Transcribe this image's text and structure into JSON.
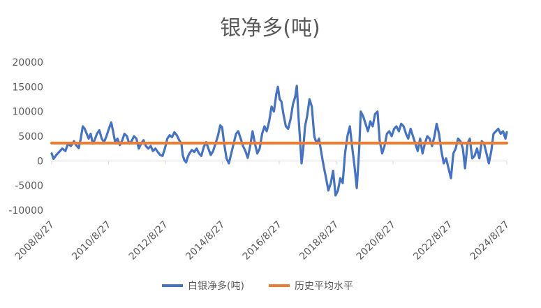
{
  "chart_data": {
    "type": "line",
    "title": "银净多(吨)",
    "xlabel": "",
    "ylabel": "",
    "ylim": [
      -10000,
      20000
    ],
    "y_ticks": [
      20000,
      15000,
      10000,
      5000,
      0,
      -5000,
      -10000
    ],
    "x_ticks": [
      "2008/8/27",
      "2010/8/27",
      "2012/8/27",
      "2014/8/27",
      "2016/8/27",
      "2018/8/27",
      "2020/8/27",
      "2022/8/27",
      "2024/8/27"
    ],
    "xlim": [
      "2008-08-27",
      "2024-08-27"
    ],
    "grid": false,
    "legend_position": "bottom",
    "series": [
      {
        "name": "白银净多(吨)",
        "color": "#4472C4",
        "points": [
          [
            "2008-08-27",
            1500
          ],
          [
            "2008-09-20",
            400
          ],
          [
            "2008-10-25",
            1200
          ],
          [
            "2008-12-01",
            1800
          ],
          [
            "2009-01-10",
            2500
          ],
          [
            "2009-02-20",
            2000
          ],
          [
            "2009-03-25",
            3500
          ],
          [
            "2009-05-01",
            3000
          ],
          [
            "2009-06-10",
            4000
          ],
          [
            "2009-07-05",
            3200
          ],
          [
            "2009-08-10",
            2600
          ],
          [
            "2009-09-05",
            4500
          ],
          [
            "2009-10-01",
            7000
          ],
          [
            "2009-10-25",
            6500
          ],
          [
            "2009-11-20",
            5500
          ],
          [
            "2009-12-15",
            4500
          ],
          [
            "2010-01-10",
            5500
          ],
          [
            "2010-02-05",
            3500
          ],
          [
            "2010-03-01",
            4200
          ],
          [
            "2010-04-01",
            5500
          ],
          [
            "2010-05-01",
            6200
          ],
          [
            "2010-06-01",
            4500
          ],
          [
            "2010-07-01",
            3800
          ],
          [
            "2010-08-01",
            5000
          ],
          [
            "2010-09-01",
            6500
          ],
          [
            "2010-10-01",
            7800
          ],
          [
            "2010-10-25",
            6000
          ],
          [
            "2010-11-20",
            3800
          ],
          [
            "2010-12-20",
            4500
          ],
          [
            "2011-01-20",
            3200
          ],
          [
            "2011-02-20",
            4200
          ],
          [
            "2011-03-20",
            5500
          ],
          [
            "2011-04-20",
            5000
          ],
          [
            "2011-05-20",
            3500
          ],
          [
            "2011-06-20",
            4000
          ],
          [
            "2011-07-20",
            5000
          ],
          [
            "2011-08-20",
            4500
          ],
          [
            "2011-09-20",
            2500
          ],
          [
            "2011-10-20",
            3500
          ],
          [
            "2011-11-20",
            4200
          ],
          [
            "2011-12-20",
            3000
          ],
          [
            "2012-01-20",
            2500
          ],
          [
            "2012-02-20",
            3000
          ],
          [
            "2012-03-20",
            2000
          ],
          [
            "2012-04-20",
            2500
          ],
          [
            "2012-05-20",
            1800
          ],
          [
            "2012-06-20",
            1200
          ],
          [
            "2012-07-20",
            1000
          ],
          [
            "2012-08-20",
            2500
          ],
          [
            "2012-09-20",
            4500
          ],
          [
            "2012-10-20",
            5200
          ],
          [
            "2012-11-20",
            4800
          ],
          [
            "2012-12-20",
            5800
          ],
          [
            "2013-01-20",
            5200
          ],
          [
            "2013-02-20",
            4200
          ],
          [
            "2013-03-20",
            3500
          ],
          [
            "2013-04-05",
            1200
          ],
          [
            "2013-04-25",
            200
          ],
          [
            "2013-05-20",
            -300
          ],
          [
            "2013-06-10",
            800
          ],
          [
            "2013-07-01",
            1500
          ],
          [
            "2013-08-01",
            2200
          ],
          [
            "2013-09-01",
            1800
          ],
          [
            "2013-10-01",
            2500
          ],
          [
            "2013-11-01",
            1500
          ],
          [
            "2013-12-01",
            1000
          ],
          [
            "2014-01-01",
            2800
          ],
          [
            "2014-02-01",
            3800
          ],
          [
            "2014-03-01",
            2500
          ],
          [
            "2014-04-01",
            1200
          ],
          [
            "2014-05-01",
            2000
          ],
          [
            "2014-06-01",
            3500
          ],
          [
            "2014-07-01",
            5000
          ],
          [
            "2014-08-01",
            7200
          ],
          [
            "2014-08-25",
            6800
          ],
          [
            "2014-09-20",
            3500
          ],
          [
            "2014-10-20",
            500
          ],
          [
            "2014-11-20",
            -500
          ],
          [
            "2014-12-20",
            1500
          ],
          [
            "2015-01-20",
            3500
          ],
          [
            "2015-02-20",
            5500
          ],
          [
            "2015-03-20",
            6000
          ],
          [
            "2015-04-20",
            4500
          ],
          [
            "2015-05-20",
            3000
          ],
          [
            "2015-06-20",
            2000
          ],
          [
            "2015-07-20",
            600
          ],
          [
            "2015-08-20",
            3000
          ],
          [
            "2015-09-20",
            6000
          ],
          [
            "2015-10-20",
            3500
          ],
          [
            "2015-11-20",
            1500
          ],
          [
            "2015-12-20",
            2500
          ],
          [
            "2016-01-20",
            5500
          ],
          [
            "2016-02-20",
            7000
          ],
          [
            "2016-03-20",
            6000
          ],
          [
            "2016-04-20",
            8000
          ],
          [
            "2016-05-20",
            11000
          ],
          [
            "2016-06-20",
            10000
          ],
          [
            "2016-07-20",
            13500
          ],
          [
            "2016-08-10",
            15000
          ],
          [
            "2016-09-01",
            12500
          ],
          [
            "2016-09-25",
            12000
          ],
          [
            "2016-10-20",
            9500
          ],
          [
            "2016-11-20",
            7000
          ],
          [
            "2016-12-20",
            6500
          ],
          [
            "2017-01-20",
            8500
          ],
          [
            "2017-02-20",
            11500
          ],
          [
            "2017-03-20",
            13000
          ],
          [
            "2017-04-10",
            15200
          ],
          [
            "2017-05-01",
            9000
          ],
          [
            "2017-05-25",
            3500
          ],
          [
            "2017-06-10",
            -500
          ],
          [
            "2017-07-01",
            2500
          ],
          [
            "2017-07-25",
            7000
          ],
          [
            "2017-08-20",
            9000
          ],
          [
            "2017-09-20",
            12500
          ],
          [
            "2017-10-20",
            11000
          ],
          [
            "2017-11-20",
            5000
          ],
          [
            "2017-12-20",
            3500
          ],
          [
            "2018-01-20",
            4500
          ],
          [
            "2018-02-20",
            1500
          ],
          [
            "2018-03-20",
            -1000
          ],
          [
            "2018-04-20",
            -3500
          ],
          [
            "2018-05-20",
            -6000
          ],
          [
            "2018-06-20",
            -4500
          ],
          [
            "2018-07-20",
            -2000
          ],
          [
            "2018-08-20",
            -7000
          ],
          [
            "2018-09-20",
            -6000
          ],
          [
            "2018-10-20",
            -3500
          ],
          [
            "2018-11-20",
            -4500
          ],
          [
            "2018-12-20",
            1500
          ],
          [
            "2019-01-20",
            5000
          ],
          [
            "2019-02-20",
            7000
          ],
          [
            "2019-03-20",
            3000
          ],
          [
            "2019-04-20",
            -1000
          ],
          [
            "2019-05-20",
            -5500
          ],
          [
            "2019-06-20",
            2500
          ],
          [
            "2019-07-10",
            10000
          ],
          [
            "2019-08-10",
            9000
          ],
          [
            "2019-09-10",
            7500
          ],
          [
            "2019-10-10",
            6000
          ],
          [
            "2019-11-10",
            8000
          ],
          [
            "2019-12-10",
            7000
          ],
          [
            "2020-01-10",
            9500
          ],
          [
            "2020-02-10",
            10000
          ],
          [
            "2020-03-10",
            4000
          ],
          [
            "2020-04-10",
            1500
          ],
          [
            "2020-05-10",
            3000
          ],
          [
            "2020-06-10",
            5500
          ],
          [
            "2020-07-10",
            6000
          ],
          [
            "2020-08-10",
            5000
          ],
          [
            "2020-09-10",
            6500
          ],
          [
            "2020-10-10",
            7000
          ],
          [
            "2020-11-10",
            6000
          ],
          [
            "2020-12-10",
            7500
          ],
          [
            "2021-01-10",
            7000
          ],
          [
            "2021-02-10",
            5500
          ],
          [
            "2021-03-10",
            4500
          ],
          [
            "2021-04-10",
            6500
          ],
          [
            "2021-05-10",
            5000
          ],
          [
            "2021-06-10",
            3500
          ],
          [
            "2021-07-10",
            2000
          ],
          [
            "2021-08-10",
            4500
          ],
          [
            "2021-09-10",
            1500
          ],
          [
            "2021-10-10",
            3500
          ],
          [
            "2021-11-10",
            5000
          ],
          [
            "2021-12-10",
            4500
          ],
          [
            "2022-01-10",
            3000
          ],
          [
            "2022-02-10",
            5000
          ],
          [
            "2022-03-10",
            7500
          ],
          [
            "2022-04-10",
            5500
          ],
          [
            "2022-05-10",
            2000
          ],
          [
            "2022-06-10",
            -500
          ],
          [
            "2022-07-10",
            500
          ],
          [
            "2022-08-10",
            -1500
          ],
          [
            "2022-09-10",
            -3500
          ],
          [
            "2022-10-10",
            1500
          ],
          [
            "2022-11-10",
            2500
          ],
          [
            "2022-12-10",
            4500
          ],
          [
            "2023-01-10",
            4000
          ],
          [
            "2023-02-10",
            2500
          ],
          [
            "2023-03-10",
            -1500
          ],
          [
            "2023-04-10",
            3500
          ],
          [
            "2023-05-10",
            4500
          ],
          [
            "2023-06-10",
            500
          ],
          [
            "2023-07-10",
            1000
          ],
          [
            "2023-08-10",
            2500
          ],
          [
            "2023-09-10",
            500
          ],
          [
            "2023-10-10",
            4000
          ],
          [
            "2023-11-10",
            3500
          ],
          [
            "2023-12-10",
            1500
          ],
          [
            "2024-01-10",
            -500
          ],
          [
            "2024-02-10",
            2000
          ],
          [
            "2024-03-10",
            5500
          ],
          [
            "2024-04-10",
            6000
          ],
          [
            "2024-05-10",
            6500
          ],
          [
            "2024-06-10",
            5500
          ],
          [
            "2024-07-10",
            6000
          ],
          [
            "2024-08-10",
            4500
          ],
          [
            "2024-08-27",
            5800
          ]
        ]
      },
      {
        "name": "历史平均水平",
        "color": "#ED7D31",
        "points": [
          [
            "2008-08-27",
            3600
          ],
          [
            "2024-08-27",
            3600
          ]
        ]
      }
    ]
  }
}
